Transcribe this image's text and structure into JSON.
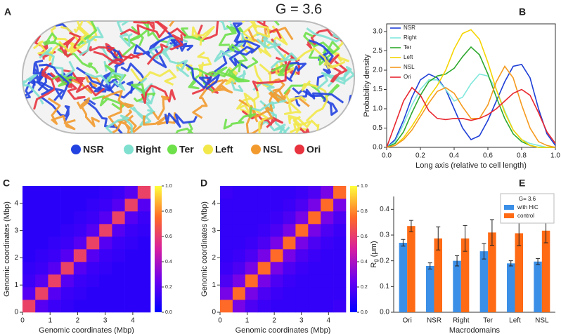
{
  "chart_data": [
    {
      "type": "illustration",
      "panel_label": "A",
      "title": "G = 3.6",
      "series": [
        {
          "name": "NSR",
          "color": "#2243e0"
        },
        {
          "name": "Right",
          "color": "#7fe0d0"
        },
        {
          "name": "Ter",
          "color": "#6ee04a"
        },
        {
          "name": "Left",
          "color": "#f2e84a"
        },
        {
          "name": "NSL",
          "color": "#f29a2e"
        },
        {
          "name": "Ori",
          "color": "#e8333f"
        }
      ]
    },
    {
      "type": "line",
      "panel_label": "B",
      "xlabel": "Long axis (relative to cell length)",
      "ylabel": "Probability density",
      "x": [
        0,
        0.05,
        0.1,
        0.15,
        0.2,
        0.25,
        0.3,
        0.35,
        0.4,
        0.45,
        0.5,
        0.55,
        0.6,
        0.65,
        0.7,
        0.75,
        0.8,
        0.85,
        0.9,
        0.95,
        1.0
      ],
      "series": [
        {
          "name": "NSR",
          "color": "#1f3fd6",
          "values": [
            0,
            0.2,
            0.7,
            1.3,
            1.75,
            1.9,
            1.8,
            1.5,
            1.0,
            0.5,
            0.2,
            0.3,
            0.7,
            1.2,
            1.7,
            2.1,
            2.15,
            1.8,
            1.0,
            0.35,
            0.05
          ]
        },
        {
          "name": "Right",
          "color": "#80e8dc",
          "values": [
            0,
            0.15,
            0.6,
            1.1,
            1.5,
            1.75,
            1.75,
            1.5,
            1.2,
            1.3,
            1.65,
            1.9,
            1.85,
            1.5,
            0.95,
            0.45,
            0.2,
            0.1,
            0.05,
            0,
            0
          ]
        },
        {
          "name": "Ter",
          "color": "#2fa82f",
          "values": [
            0,
            0.1,
            0.4,
            0.9,
            1.35,
            1.7,
            1.85,
            1.9,
            2.05,
            2.35,
            2.6,
            2.4,
            1.9,
            1.3,
            0.75,
            0.35,
            0.15,
            0.05,
            0,
            0,
            0
          ]
        },
        {
          "name": "Left",
          "color": "#f5d400",
          "values": [
            0,
            0.05,
            0.25,
            0.55,
            0.9,
            1.3,
            1.6,
            2.0,
            2.55,
            2.95,
            3.05,
            2.8,
            2.2,
            1.5,
            0.9,
            0.45,
            0.2,
            0.05,
            0,
            0,
            0
          ]
        },
        {
          "name": "NSL",
          "color": "#f59a1e",
          "values": [
            0,
            0.05,
            0.2,
            0.45,
            0.8,
            1.15,
            1.45,
            1.55,
            1.4,
            1.05,
            0.75,
            0.75,
            1.1,
            1.7,
            2.1,
            1.8,
            1.1,
            0.5,
            0.15,
            0.05,
            0
          ]
        },
        {
          "name": "Ori",
          "color": "#e8262e",
          "values": [
            0,
            0.6,
            1.2,
            1.55,
            1.35,
            0.95,
            0.75,
            0.72,
            0.75,
            0.75,
            0.7,
            0.75,
            0.85,
            1.0,
            1.2,
            1.4,
            1.5,
            1.35,
            0.9,
            0.4,
            0.1
          ]
        }
      ],
      "xlim": [
        0,
        1
      ],
      "ylim": [
        0,
        3.2
      ],
      "xticks": [
        {
          "value": 0,
          "label": "0.0"
        },
        0.2,
        0.4,
        0.6,
        0.8,
        {
          "value": 1,
          "label": "1.0"
        }
      ],
      "yticks": [
        {
          "value": 0,
          "label": "0.0"
        },
        0.5,
        {
          "value": 1,
          "label": "1.0"
        },
        1.5,
        {
          "value": 2,
          "label": "2.0"
        },
        2.5,
        {
          "value": 3,
          "label": "3.0"
        }
      ],
      "legend": "upper left"
    },
    {
      "type": "heatmap",
      "panel_label": "C",
      "xlabel": "Genomic coordinates (Mbp)",
      "ylabel": "Genomic coordinates (Mbp)",
      "xlim": [
        0,
        4.64
      ],
      "ylim": [
        0,
        4.64
      ],
      "xticks": [
        0,
        1,
        2,
        3,
        4
      ],
      "yticks": [
        0,
        1,
        2,
        3,
        4
      ],
      "clim": [
        0,
        1
      ],
      "cticks": [
        {
          "value": 0,
          "label": "0.0"
        },
        0.2,
        0.4,
        0.6,
        0.8,
        {
          "value": 1,
          "label": "1.0"
        }
      ],
      "colormap": [
        "#0000ff",
        "#6a00f0",
        "#d61ea0",
        "#ff6a28",
        "#ffff3c"
      ],
      "matrix": [
        [
          0.62,
          0.2,
          0.14,
          0.12,
          0.1,
          0.1,
          0.1,
          0.1,
          0.1,
          0.1
        ],
        [
          0.2,
          0.62,
          0.2,
          0.14,
          0.12,
          0.1,
          0.1,
          0.1,
          0.1,
          0.1
        ],
        [
          0.14,
          0.2,
          0.62,
          0.2,
          0.14,
          0.12,
          0.1,
          0.1,
          0.1,
          0.1
        ],
        [
          0.12,
          0.14,
          0.2,
          0.62,
          0.2,
          0.14,
          0.12,
          0.1,
          0.1,
          0.1
        ],
        [
          0.1,
          0.12,
          0.14,
          0.2,
          0.62,
          0.2,
          0.14,
          0.12,
          0.1,
          0.1
        ],
        [
          0.1,
          0.1,
          0.12,
          0.14,
          0.2,
          0.62,
          0.2,
          0.14,
          0.12,
          0.1
        ],
        [
          0.1,
          0.1,
          0.1,
          0.12,
          0.14,
          0.2,
          0.62,
          0.2,
          0.14,
          0.12
        ],
        [
          0.1,
          0.1,
          0.1,
          0.1,
          0.12,
          0.14,
          0.2,
          0.62,
          0.2,
          0.14
        ],
        [
          0.1,
          0.1,
          0.1,
          0.1,
          0.1,
          0.12,
          0.14,
          0.2,
          0.62,
          0.2
        ],
        [
          0.1,
          0.1,
          0.1,
          0.1,
          0.1,
          0.1,
          0.12,
          0.14,
          0.2,
          0.62
        ]
      ]
    },
    {
      "type": "heatmap",
      "panel_label": "D",
      "xlabel": "Genomic coordinates (Mbp)",
      "ylabel": "Genomic coordinates (Mbp)",
      "xlim": [
        0,
        4.64
      ],
      "ylim": [
        0,
        4.64
      ],
      "xticks": [
        0,
        1,
        2,
        3,
        4
      ],
      "yticks": [
        0,
        1,
        2,
        3,
        4
      ],
      "clim": [
        0,
        1
      ],
      "cticks": [
        {
          "value": 0,
          "label": "0.0"
        },
        0.2,
        0.4,
        0.6,
        0.8,
        {
          "value": 1,
          "label": "1.0"
        }
      ],
      "colormap": [
        "#0000ff",
        "#6a00f0",
        "#d61ea0",
        "#ff6a28",
        "#ffff3c"
      ],
      "matrix": [
        [
          0.75,
          0.28,
          0.18,
          0.14,
          0.12,
          0.12,
          0.12,
          0.12,
          0.12,
          0.14
        ],
        [
          0.28,
          0.75,
          0.28,
          0.18,
          0.14,
          0.12,
          0.12,
          0.12,
          0.12,
          0.12
        ],
        [
          0.18,
          0.28,
          0.75,
          0.28,
          0.18,
          0.14,
          0.12,
          0.12,
          0.12,
          0.12
        ],
        [
          0.14,
          0.18,
          0.28,
          0.75,
          0.28,
          0.18,
          0.14,
          0.12,
          0.12,
          0.12
        ],
        [
          0.12,
          0.14,
          0.18,
          0.28,
          0.75,
          0.28,
          0.18,
          0.14,
          0.12,
          0.12
        ],
        [
          0.12,
          0.12,
          0.14,
          0.18,
          0.28,
          0.75,
          0.28,
          0.18,
          0.14,
          0.12
        ],
        [
          0.12,
          0.12,
          0.12,
          0.14,
          0.18,
          0.28,
          0.75,
          0.28,
          0.18,
          0.14
        ],
        [
          0.12,
          0.12,
          0.12,
          0.12,
          0.14,
          0.18,
          0.28,
          0.75,
          0.28,
          0.18
        ],
        [
          0.12,
          0.12,
          0.12,
          0.12,
          0.12,
          0.14,
          0.18,
          0.28,
          0.75,
          0.28
        ],
        [
          0.14,
          0.12,
          0.12,
          0.12,
          0.12,
          0.12,
          0.14,
          0.18,
          0.28,
          0.75
        ]
      ]
    },
    {
      "type": "grouped_bar",
      "panel_label": "E",
      "xlabel": "Macrodomains",
      "ylabel": "R",
      "ylabel_sub": "g",
      "ylabel_unit": "(μm)",
      "categories": [
        "Ori",
        "NSR",
        "Right",
        "Ter",
        "Left",
        "NSL"
      ],
      "series": [
        {
          "name": "with HiC",
          "color": "#3c8fe6",
          "values": [
            0.27,
            0.18,
            0.2,
            0.237,
            0.19,
            0.197
          ],
          "errors": [
            0.013,
            0.012,
            0.02,
            0.03,
            0.01,
            0.012
          ]
        },
        {
          "name": "control",
          "color": "#ff6a14",
          "values": [
            0.335,
            0.287,
            0.287,
            0.31,
            0.307,
            0.317
          ],
          "errors": [
            0.022,
            0.045,
            0.05,
            0.05,
            0.048,
            0.047
          ]
        }
      ],
      "ylim": [
        0,
        0.45
      ],
      "yticks": [
        {
          "value": 0,
          "label": "0.0"
        },
        0.1,
        0.2,
        0.3,
        0.4
      ],
      "legend_title": "G= 3.6",
      "legend": "upper right"
    }
  ]
}
